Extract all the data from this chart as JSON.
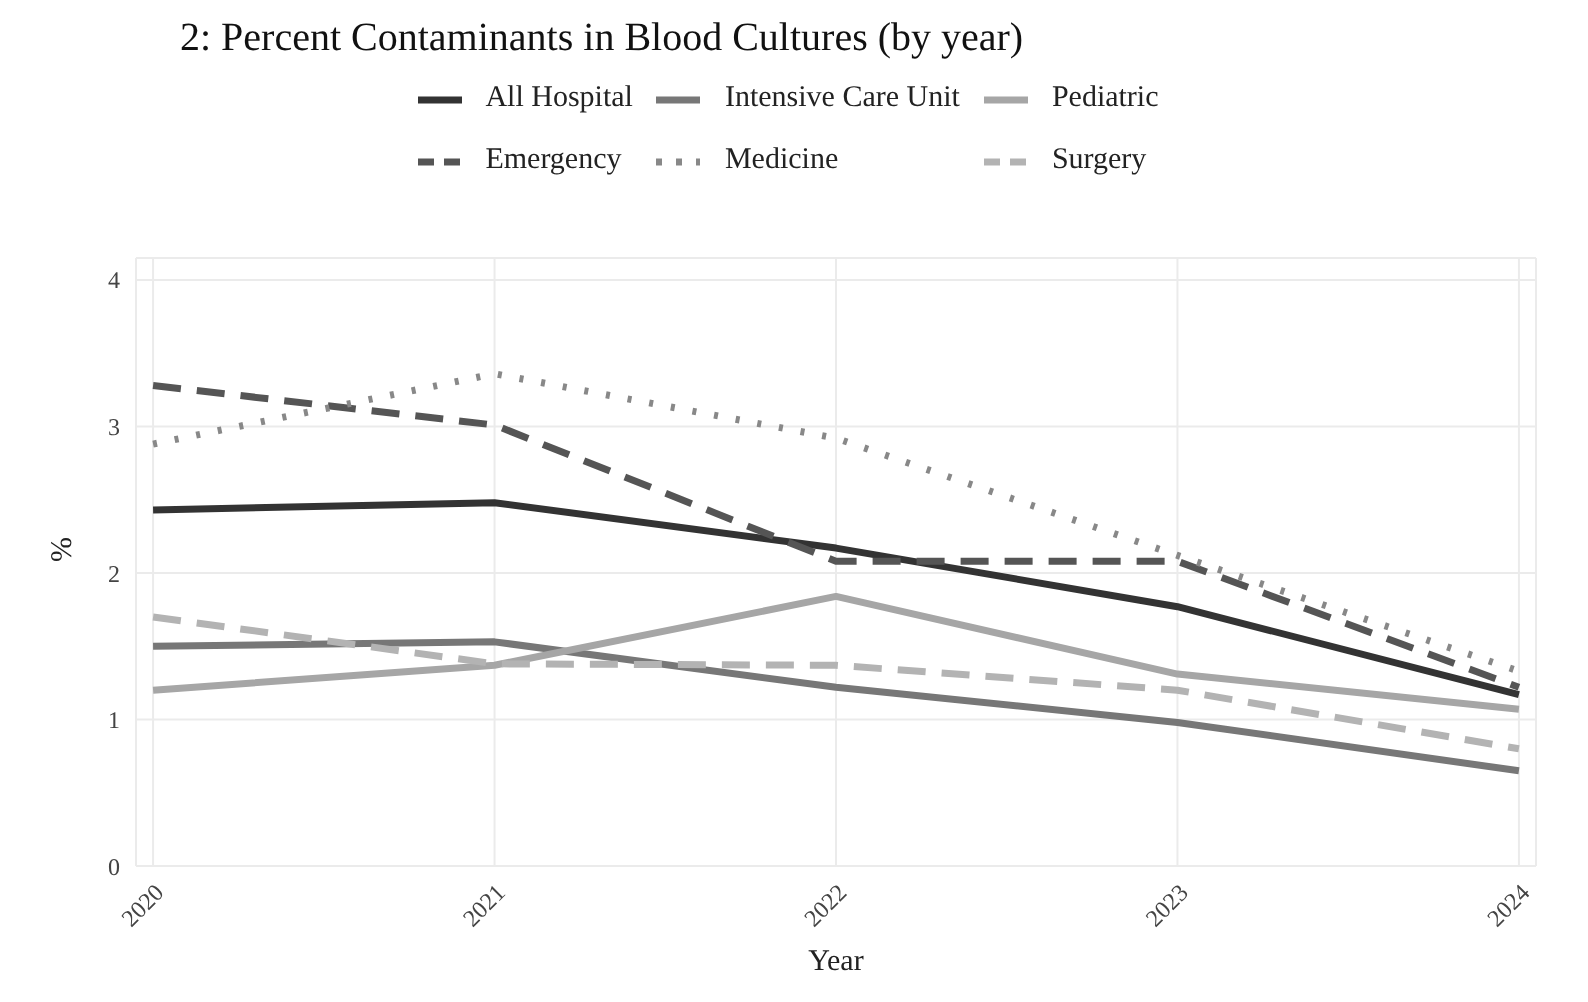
{
  "chart_data": {
    "type": "line",
    "title": "2: Percent Contaminants in Blood Cultures (by year)",
    "xlabel": "Year",
    "ylabel": "%",
    "categories": [
      "2020",
      "2021",
      "2022",
      "2023",
      "2024"
    ],
    "ylim": [
      0,
      4.15
    ],
    "yticks": [
      0,
      1,
      2,
      3,
      4
    ],
    "grid": true,
    "legend": "top",
    "marker": "none",
    "series": [
      {
        "name": "All Hospital",
        "color": "#333333",
        "line_style": "solid",
        "values": [
          2.43,
          2.48,
          2.17,
          1.77,
          1.17
        ]
      },
      {
        "name": "Intensive Care Unit",
        "color": "#777777",
        "line_style": "solid",
        "values": [
          1.5,
          1.53,
          1.22,
          0.98,
          0.65
        ]
      },
      {
        "name": "Pediatric",
        "color": "#a6a6a6",
        "line_style": "solid",
        "values": [
          1.2,
          1.37,
          1.84,
          1.31,
          1.07
        ]
      },
      {
        "name": "Emergency",
        "color": "#555555",
        "line_style": "dashed",
        "values": [
          3.28,
          3.01,
          2.08,
          2.08,
          1.22
        ]
      },
      {
        "name": "Medicine",
        "color": "#888888",
        "line_style": "dotted",
        "values": [
          2.88,
          3.36,
          2.92,
          2.12,
          1.33
        ]
      },
      {
        "name": "Surgery",
        "color": "#b3b3b3",
        "line_style": "dashed",
        "values": [
          1.7,
          1.38,
          1.37,
          1.2,
          0.8
        ]
      }
    ]
  }
}
